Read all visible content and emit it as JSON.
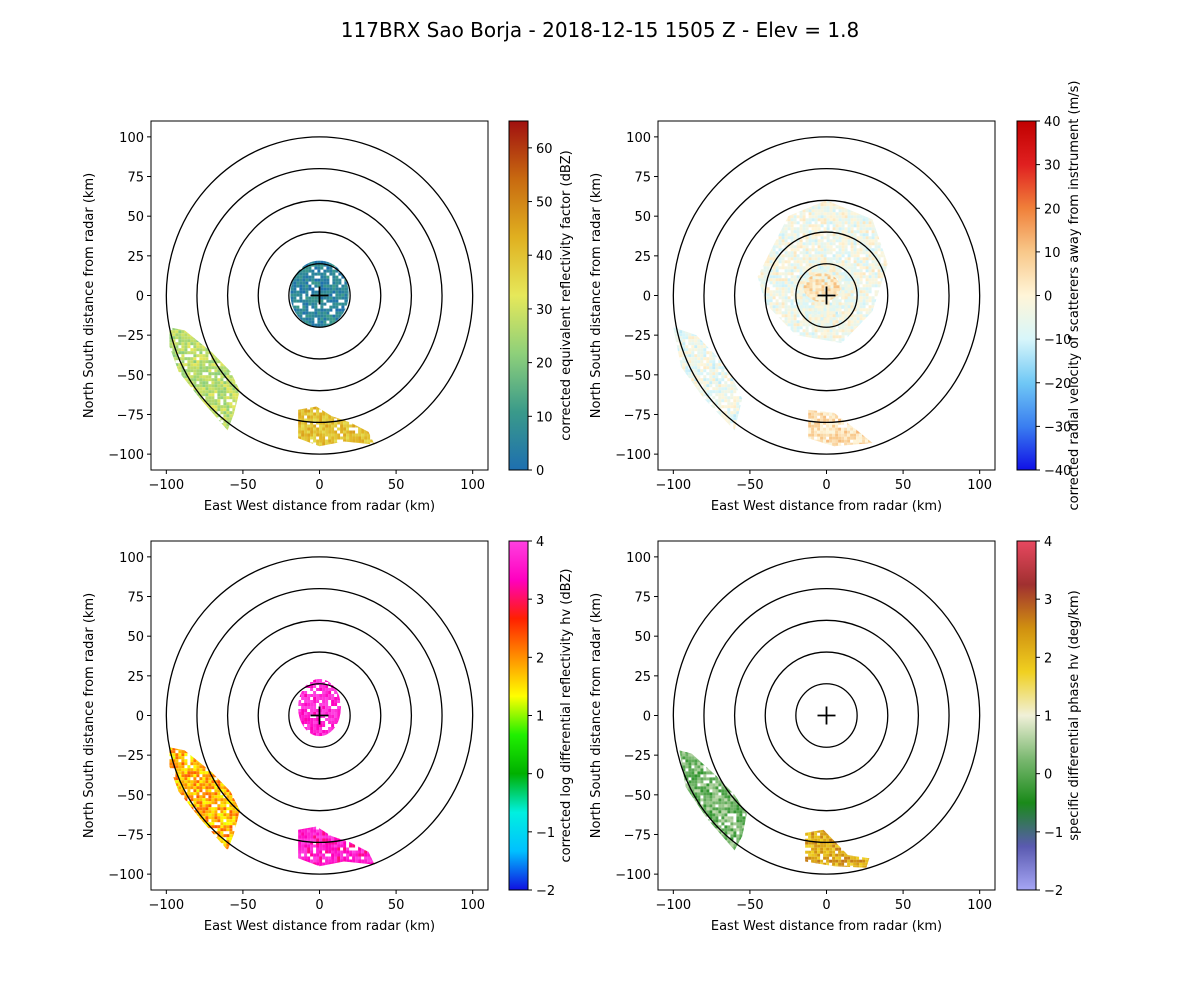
{
  "figure": {
    "title": "117BRX Sao Borja - 2018-12-15 1505 Z -  Elev = 1.8"
  },
  "chart_data": [
    {
      "type": "heatmap",
      "panel": "top-left",
      "field": "corrected equivalent reflectivity factor",
      "xlabel": "East West distance from radar (km)",
      "ylabel": "North South distance from radar (km)",
      "xlim": [
        -110,
        110
      ],
      "ylim": [
        -110,
        110
      ],
      "xticks": [
        -100,
        -50,
        0,
        50,
        100
      ],
      "yticks": [
        -100,
        -75,
        -50,
        -25,
        0,
        25,
        50,
        75,
        100
      ],
      "range_rings_km": [
        20,
        40,
        60,
        80,
        100
      ],
      "colorbar": {
        "label": "corrected equivalent reflectivity factor (dBZ)",
        "min": 0,
        "max": 65,
        "ticks": [
          0,
          10,
          20,
          30,
          40,
          50,
          60
        ],
        "stops": [
          "#1e6fb0",
          "#3a9a8a",
          "#8ed07a",
          "#e6e85a",
          "#e0b020",
          "#c86a10",
          "#a01010"
        ]
      },
      "echoes": [
        {
          "region": "near-radar",
          "cx": 0,
          "cy": 1,
          "rx": 19,
          "ry": 21,
          "value": 6
        },
        {
          "region": "southwest band",
          "points": [
            [
              -98,
              -20
            ],
            [
              -88,
              -22
            ],
            [
              -70,
              -36
            ],
            [
              -58,
              -48
            ],
            [
              -52,
              -60
            ],
            [
              -56,
              -75
            ],
            [
              -60,
              -85
            ],
            [
              -78,
              -65
            ],
            [
              -92,
              -48
            ],
            [
              -98,
              -32
            ]
          ],
          "value": 27
        },
        {
          "region": "south cluster",
          "points": [
            [
              -14,
              -72
            ],
            [
              -2,
              -70
            ],
            [
              8,
              -76
            ],
            [
              20,
              -80
            ],
            [
              32,
              -86
            ],
            [
              36,
              -94
            ],
            [
              16,
              -92
            ],
            [
              0,
              -95
            ],
            [
              -14,
              -90
            ]
          ],
          "value": 40
        }
      ]
    },
    {
      "type": "heatmap",
      "panel": "top-right",
      "field": "corrected radial velocity of scatterers away from instrument",
      "xlabel": "East West distance from radar (km)",
      "ylabel": "North South distance from radar (km)",
      "xlim": [
        -110,
        110
      ],
      "ylim": [
        -110,
        110
      ],
      "xticks": [
        -100,
        -50,
        0,
        50,
        100
      ],
      "yticks": [
        -100,
        -75,
        -50,
        -25,
        0,
        25,
        50,
        75,
        100
      ],
      "range_rings_km": [
        20,
        40,
        60,
        80,
        100
      ],
      "colorbar": {
        "label": "corrected radial velocity of scatterers away from instrument (m/s)",
        "min": -40,
        "max": 40,
        "ticks": [
          -40,
          -30,
          -20,
          -10,
          0,
          10,
          20,
          30,
          40
        ],
        "stops": [
          "#1010e6",
          "#3a7ef0",
          "#70c8f5",
          "#d8f6fa",
          "#fff5d8",
          "#f8c88a",
          "#f0803a",
          "#e02020",
          "#c00000"
        ]
      },
      "echoes": [
        {
          "region": "near-radar",
          "cx": 0,
          "cy": 0,
          "rx": 20,
          "ry": 22,
          "value": -6
        },
        {
          "region": "north diffuse",
          "points": [
            [
              -45,
              12
            ],
            [
              -25,
              50
            ],
            [
              0,
              60
            ],
            [
              30,
              48
            ],
            [
              40,
              20
            ],
            [
              30,
              -10
            ],
            [
              10,
              -30
            ],
            [
              -20,
              -25
            ],
            [
              -40,
              -5
            ]
          ],
          "value": -4
        },
        {
          "region": "inner warm",
          "cx": -3,
          "cy": 5,
          "rx": 12,
          "ry": 9,
          "value": 4
        },
        {
          "region": "southwest band",
          "points": [
            [
              -100,
              -20
            ],
            [
              -85,
              -25
            ],
            [
              -65,
              -45
            ],
            [
              -55,
              -65
            ],
            [
              -60,
              -85
            ],
            [
              -80,
              -65
            ],
            [
              -95,
              -45
            ]
          ],
          "value": -5
        },
        {
          "region": "south cluster",
          "points": [
            [
              -12,
              -72
            ],
            [
              5,
              -74
            ],
            [
              20,
              -85
            ],
            [
              30,
              -93
            ],
            [
              5,
              -95
            ],
            [
              -12,
              -90
            ]
          ],
          "value": 5
        }
      ]
    },
    {
      "type": "heatmap",
      "panel": "bottom-left",
      "field": "corrected log differential reflectivity hv",
      "xlabel": "East West distance from radar (km)",
      "ylabel": "North South distance from radar (km)",
      "xlim": [
        -110,
        110
      ],
      "ylim": [
        -110,
        110
      ],
      "xticks": [
        -100,
        -50,
        0,
        50,
        100
      ],
      "yticks": [
        -100,
        -75,
        -50,
        -25,
        0,
        25,
        50,
        75,
        100
      ],
      "range_rings_km": [
        20,
        40,
        60,
        80,
        100
      ],
      "colorbar": {
        "label": "corrected log differential reflectivity hv (dBZ)",
        "min": -2,
        "max": 4,
        "ticks": [
          -2,
          -1,
          0,
          1,
          2,
          3,
          4
        ],
        "stops": [
          "#1010e0",
          "#00c0ff",
          "#00f0e0",
          "#00b000",
          "#20f000",
          "#ffff00",
          "#ff9000",
          "#ff2000",
          "#ff00c0",
          "#ff40e0"
        ]
      },
      "echoes": [
        {
          "region": "near-radar",
          "cx": 0,
          "cy": 5,
          "rx": 14,
          "ry": 18,
          "value": 3.8
        },
        {
          "region": "southwest band",
          "points": [
            [
              -98,
              -20
            ],
            [
              -88,
              -22
            ],
            [
              -70,
              -36
            ],
            [
              -58,
              -48
            ],
            [
              -52,
              -60
            ],
            [
              -56,
              -75
            ],
            [
              -60,
              -85
            ],
            [
              -78,
              -65
            ],
            [
              -92,
              -48
            ],
            [
              -98,
              -32
            ]
          ],
          "value": 1.8
        },
        {
          "region": "south cluster",
          "points": [
            [
              -14,
              -72
            ],
            [
              -2,
              -70
            ],
            [
              8,
              -76
            ],
            [
              20,
              -80
            ],
            [
              32,
              -86
            ],
            [
              36,
              -94
            ],
            [
              16,
              -92
            ],
            [
              0,
              -95
            ],
            [
              -14,
              -90
            ]
          ],
          "value": 3.6
        }
      ]
    },
    {
      "type": "heatmap",
      "panel": "bottom-right",
      "field": "specific differential phase hv",
      "xlabel": "East West distance from radar (km)",
      "ylabel": "North South distance from radar (km)",
      "xlim": [
        -110,
        110
      ],
      "ylim": [
        -110,
        110
      ],
      "xticks": [
        -100,
        -50,
        0,
        50,
        100
      ],
      "yticks": [
        -100,
        -75,
        -50,
        -25,
        0,
        25,
        50,
        75,
        100
      ],
      "range_rings_km": [
        20,
        40,
        60,
        80,
        100
      ],
      "colorbar": {
        "label": "specific differential phase hv (deg/km)",
        "min": -2,
        "max": 4,
        "ticks": [
          -2,
          -1,
          0,
          1,
          2,
          3,
          4
        ],
        "stops": [
          "#a6a6f5",
          "#5a5ab0",
          "#1a8a1a",
          "#7ab870",
          "#f0f0d8",
          "#f0d020",
          "#d09010",
          "#a03030",
          "#e84860"
        ]
      },
      "echoes": [
        {
          "region": "southwest band",
          "points": [
            [
              -96,
              -22
            ],
            [
              -88,
              -24
            ],
            [
              -72,
              -38
            ],
            [
              -60,
              -50
            ],
            [
              -52,
              -62
            ],
            [
              -55,
              -76
            ],
            [
              -60,
              -85
            ],
            [
              -78,
              -65
            ],
            [
              -92,
              -45
            ]
          ],
          "value": 0.2
        },
        {
          "region": "south cluster",
          "points": [
            [
              -14,
              -74
            ],
            [
              -2,
              -72
            ],
            [
              6,
              -80
            ],
            [
              14,
              -88
            ],
            [
              28,
              -90
            ],
            [
              26,
              -96
            ],
            [
              5,
              -95
            ],
            [
              -14,
              -92
            ]
          ],
          "value": 2.2
        }
      ]
    }
  ]
}
